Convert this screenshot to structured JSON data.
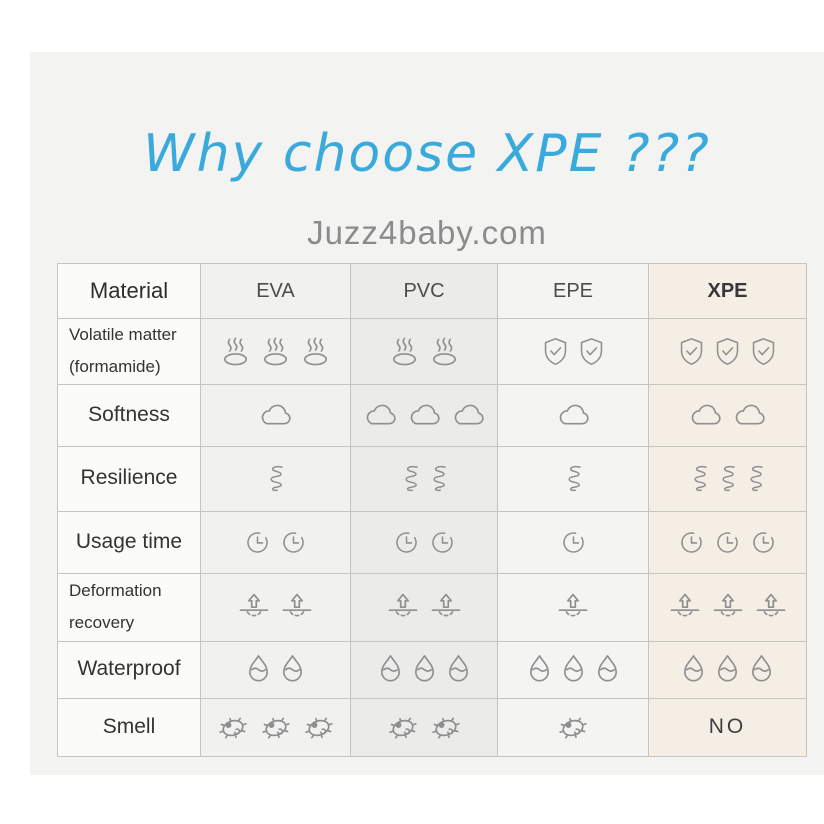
{
  "page": {
    "title": "Why choose XPE ???",
    "subtitle": "Juzz4baby.com"
  },
  "colors": {
    "title": "#3aa9dc",
    "subtitle": "#8b8b8b",
    "panel_bg": "#f3f3f2",
    "xpe_column_bg": "#f4eee5",
    "icon_stroke": "#8f8f8f",
    "table_border": "#9a9a9a"
  },
  "table": {
    "header": [
      "Material",
      "EVA",
      "PVC",
      "EPE",
      "XPE"
    ],
    "rows": [
      {
        "label": "Volatile matter (formamide)",
        "label_lines": [
          "Volatile matter",
          "(formamide)"
        ],
        "cells": [
          {
            "icon": "hot-spring",
            "count": 3
          },
          {
            "icon": "hot-spring",
            "count": 2
          },
          {
            "icon": "shield-check",
            "count": 2
          },
          {
            "icon": "shield-check",
            "count": 3
          }
        ]
      },
      {
        "label": "Softness",
        "label_lines": [
          "Softness"
        ],
        "cells": [
          {
            "icon": "cloud",
            "count": 1
          },
          {
            "icon": "cloud",
            "count": 3
          },
          {
            "icon": "cloud",
            "count": 1
          },
          {
            "icon": "cloud",
            "count": 2
          }
        ]
      },
      {
        "label": "Resilience",
        "label_lines": [
          "Resilience"
        ],
        "cells": [
          {
            "icon": "spring",
            "count": 1
          },
          {
            "icon": "spring",
            "count": 2
          },
          {
            "icon": "spring",
            "count": 1
          },
          {
            "icon": "spring",
            "count": 3
          }
        ]
      },
      {
        "label": "Usage time",
        "label_lines": [
          "Usage time"
        ],
        "cells": [
          {
            "icon": "clock",
            "count": 2
          },
          {
            "icon": "clock",
            "count": 2
          },
          {
            "icon": "clock",
            "count": 1
          },
          {
            "icon": "clock",
            "count": 3
          }
        ]
      },
      {
        "label": "Deformation recovery",
        "label_lines": [
          "Deformation",
          "recovery"
        ],
        "cells": [
          {
            "icon": "arrow-rebound",
            "count": 2
          },
          {
            "icon": "arrow-rebound",
            "count": 2
          },
          {
            "icon": "arrow-rebound",
            "count": 1
          },
          {
            "icon": "arrow-rebound",
            "count": 3
          }
        ]
      },
      {
        "label": "Waterproof",
        "label_lines": [
          "Waterproof"
        ],
        "cells": [
          {
            "icon": "water-drop",
            "count": 2
          },
          {
            "icon": "water-drop",
            "count": 3
          },
          {
            "icon": "water-drop",
            "count": 3
          },
          {
            "icon": "water-drop",
            "count": 3
          }
        ]
      },
      {
        "label": "Smell",
        "label_lines": [
          "Smell"
        ],
        "cells": [
          {
            "icon": "germ",
            "count": 3
          },
          {
            "icon": "germ",
            "count": 2
          },
          {
            "icon": "germ",
            "count": 1
          },
          {
            "text": "NO"
          }
        ]
      }
    ]
  },
  "chart_data": {
    "type": "table",
    "title": "Why choose XPE ???",
    "subtitle": "Juzz4baby.com",
    "columns": [
      "Material",
      "EVA",
      "PVC",
      "EPE",
      "XPE"
    ],
    "rows": [
      {
        "property": "Volatile matter (formamide)",
        "values": [
          "hot-spring x3",
          "hot-spring x2",
          "shield-check x2",
          "shield-check x3"
        ]
      },
      {
        "property": "Softness",
        "values": [
          "cloud x1",
          "cloud x3",
          "cloud x1",
          "cloud x2"
        ]
      },
      {
        "property": "Resilience",
        "values": [
          "spring x1",
          "spring x2",
          "spring x1",
          "spring x3"
        ]
      },
      {
        "property": "Usage time",
        "values": [
          "clock x2",
          "clock x2",
          "clock x1",
          "clock x3"
        ]
      },
      {
        "property": "Deformation recovery",
        "values": [
          "arrow-rebound x2",
          "arrow-rebound x2",
          "arrow-rebound x1",
          "arrow-rebound x3"
        ]
      },
      {
        "property": "Waterproof",
        "values": [
          "water-drop x2",
          "water-drop x3",
          "water-drop x3",
          "water-drop x3"
        ]
      },
      {
        "property": "Smell",
        "values": [
          "germ x3",
          "germ x2",
          "germ x1",
          "NO"
        ]
      }
    ],
    "highlighted_column": "XPE"
  }
}
